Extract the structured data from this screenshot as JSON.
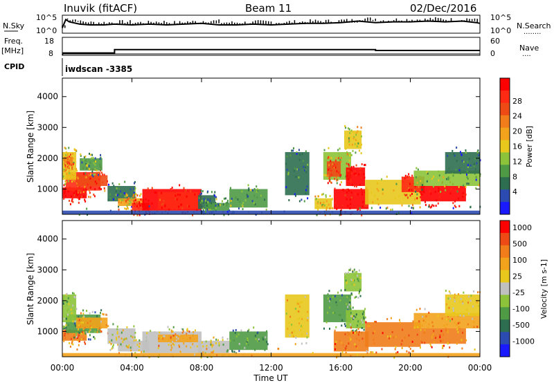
{
  "header": {
    "station": "Inuvik (fitACF)",
    "beam": "Beam 11",
    "date": "02/Dec/2016"
  },
  "top_panels": {
    "nsky_label": "N.Sky",
    "nsearch_label": "N.Search",
    "nsearch_dots": "........",
    "left_ticks": [
      "10^5",
      "10^0"
    ],
    "right_ticks": [
      "10^5",
      "10^0"
    ],
    "freq_label_1": "Freq.",
    "freq_label_2": "[MHz]",
    "freq_ticks": [
      "18",
      "8"
    ],
    "nave_label": "Nave",
    "nave_dots": "....",
    "nave_ticks": [
      "60",
      "0"
    ],
    "cpid_label": "CPID",
    "cpid_value": "iwdscan -3385"
  },
  "chart_data": [
    {
      "type": "line",
      "name": "N.Sky / N.Search",
      "yscale": "log",
      "x_hours": [
        0,
        0.2,
        0.4,
        1,
        1.6,
        2.4,
        3,
        4,
        5,
        6,
        7,
        8,
        9,
        10,
        11,
        12,
        13,
        14,
        15,
        16,
        17,
        18,
        19,
        20,
        21,
        22,
        23,
        23.8,
        24
      ],
      "nsky_level": [
        0.3,
        0.85,
        0.7,
        0.55,
        0.5,
        0.5,
        0.55,
        0.5,
        0.55,
        0.5,
        0.55,
        0.6,
        0.5,
        0.5,
        0.55,
        0.5,
        0.55,
        0.6,
        0.6,
        0.65,
        0.75,
        0.65,
        0.7,
        0.7,
        0.75,
        0.7,
        0.75,
        0.65,
        0.6
      ]
    },
    {
      "type": "line",
      "name": "Freq / Nave",
      "x_hours": [
        0,
        0.05,
        3,
        3,
        18,
        18,
        24
      ],
      "freq_mhz": [
        8,
        9,
        9,
        11,
        11,
        10.5,
        10.5
      ],
      "ylim": [
        8,
        18
      ]
    },
    {
      "type": "heatmap",
      "name": "power",
      "ylabel": "Slant Range [km]",
      "xlim": [
        0,
        24
      ],
      "ylim": [
        180,
        4600
      ],
      "yticks": [
        "1000",
        "2000",
        "3000",
        "4000"
      ],
      "colorbar_label": "Power [dB]",
      "colorbar_ticks": [
        "4",
        "8",
        "12",
        "16",
        "20",
        "24",
        "28"
      ],
      "colorbar_colors": [
        "#1a1aff",
        "#2c4bb0",
        "#2d6e50",
        "#4f9a45",
        "#8cc33a",
        "#e8c81c",
        "#f2a21b",
        "#f07c1a",
        "#ee4a16",
        "#ff2a14",
        "#ff0000"
      ],
      "regions": [
        {
          "x0": 0.0,
          "x1": 1.4,
          "y0": 700,
          "y1": 1050,
          "c": 10
        },
        {
          "x0": 0.2,
          "x1": 2.2,
          "y0": 950,
          "y1": 1550,
          "c": 9
        },
        {
          "x0": 0.8,
          "x1": 2.6,
          "y0": 1100,
          "y1": 1450,
          "c": 8
        },
        {
          "x0": 0.0,
          "x1": 0.8,
          "y0": 1300,
          "y1": 2200,
          "c": 5
        },
        {
          "x0": 0.1,
          "x1": 0.6,
          "y0": 1800,
          "y1": 2050,
          "c": 7
        },
        {
          "x0": 1.0,
          "x1": 2.3,
          "y0": 1600,
          "y1": 2000,
          "c": 3
        },
        {
          "x0": 2.6,
          "x1": 4.2,
          "y0": 600,
          "y1": 1100,
          "c": 2
        },
        {
          "x0": 3.2,
          "x1": 4.6,
          "y0": 450,
          "y1": 700,
          "c": 6
        },
        {
          "x0": 4.0,
          "x1": 5.0,
          "y0": 300,
          "y1": 550,
          "c": 9
        },
        {
          "x0": 4.6,
          "x1": 8.0,
          "y0": 300,
          "y1": 1000,
          "c": 10
        },
        {
          "x0": 5.5,
          "x1": 7.8,
          "y0": 350,
          "y1": 900,
          "c": 9
        },
        {
          "x0": 7.8,
          "x1": 8.8,
          "y0": 350,
          "y1": 800,
          "c": 2
        },
        {
          "x0": 8.2,
          "x1": 9.6,
          "y0": 300,
          "y1": 550,
          "c": 3
        },
        {
          "x0": 9.6,
          "x1": 11.8,
          "y0": 400,
          "y1": 1000,
          "c": 3
        },
        {
          "x0": 12.8,
          "x1": 14.2,
          "y0": 800,
          "y1": 2200,
          "c": 2
        },
        {
          "x0": 14.5,
          "x1": 15.5,
          "y0": 350,
          "y1": 700,
          "c": 5
        },
        {
          "x0": 15.0,
          "x1": 16.6,
          "y0": 1300,
          "y1": 2200,
          "c": 4
        },
        {
          "x0": 15.2,
          "x1": 16.0,
          "y0": 1400,
          "y1": 1900,
          "c": 8
        },
        {
          "x0": 16.3,
          "x1": 17.4,
          "y0": 1100,
          "y1": 1700,
          "c": 10
        },
        {
          "x0": 15.6,
          "x1": 17.6,
          "y0": 350,
          "y1": 1000,
          "c": 10
        },
        {
          "x0": 16.2,
          "x1": 17.2,
          "y0": 2300,
          "y1": 2900,
          "c": 5
        },
        {
          "x0": 17.4,
          "x1": 20.6,
          "y0": 500,
          "y1": 1300,
          "c": 5
        },
        {
          "x0": 19.5,
          "x1": 20.8,
          "y0": 900,
          "y1": 1400,
          "c": 9
        },
        {
          "x0": 20.6,
          "x1": 23.2,
          "y0": 600,
          "y1": 1100,
          "c": 10
        },
        {
          "x0": 20.2,
          "x1": 24.0,
          "y0": 1100,
          "y1": 1600,
          "c": 4
        },
        {
          "x0": 22.0,
          "x1": 24.0,
          "y0": 1500,
          "y1": 2200,
          "c": 2
        },
        {
          "x0": 0.0,
          "x1": 24.0,
          "y0": 180,
          "y1": 300,
          "c": 1
        }
      ]
    },
    {
      "type": "heatmap",
      "name": "velocity",
      "ylabel": "Slant Range [km]",
      "xlabel": "Time UT",
      "xlim": [
        0,
        24
      ],
      "ylim": [
        180,
        4600
      ],
      "yticks": [
        "1000",
        "2000",
        "3000",
        "4000"
      ],
      "xticks": [
        "00:00",
        "04:00",
        "08:00",
        "12:00",
        "16:00",
        "20:00",
        "00:00"
      ],
      "colorbar_label": "Velocity [m s-1]",
      "colorbar_ticks": [
        "1000",
        "500",
        "100",
        "25",
        "-25",
        "-100",
        "-500",
        "-1000"
      ],
      "colorbar_colors": [
        "#1a1aff",
        "#2c4bb0",
        "#2d6e50",
        "#4f9a45",
        "#8cc33a",
        "#c0c0c0",
        "#e8c81c",
        "#f2a21b",
        "#f07c1a",
        "#ee4a16",
        "#ff0000"
      ],
      "regions": [
        {
          "x0": 0.0,
          "x1": 1.4,
          "y0": 700,
          "y1": 1050,
          "c": 8
        },
        {
          "x0": 0.2,
          "x1": 2.2,
          "y0": 950,
          "y1": 1550,
          "c": 3
        },
        {
          "x0": 0.0,
          "x1": 0.8,
          "y0": 1300,
          "y1": 2200,
          "c": 4
        },
        {
          "x0": 0.8,
          "x1": 2.6,
          "y0": 1100,
          "y1": 1450,
          "c": 7
        },
        {
          "x0": 2.6,
          "x1": 4.2,
          "y0": 600,
          "y1": 1100,
          "c": 5
        },
        {
          "x0": 3.2,
          "x1": 5.0,
          "y0": 350,
          "y1": 700,
          "c": 5
        },
        {
          "x0": 4.6,
          "x1": 8.0,
          "y0": 300,
          "y1": 1000,
          "c": 5
        },
        {
          "x0": 5.5,
          "x1": 7.8,
          "y0": 650,
          "y1": 900,
          "c": 7
        },
        {
          "x0": 7.8,
          "x1": 9.6,
          "y0": 300,
          "y1": 700,
          "c": 5
        },
        {
          "x0": 9.6,
          "x1": 11.8,
          "y0": 400,
          "y1": 1000,
          "c": 3
        },
        {
          "x0": 12.8,
          "x1": 14.2,
          "y0": 800,
          "y1": 2200,
          "c": 6
        },
        {
          "x0": 15.0,
          "x1": 16.6,
          "y0": 1300,
          "y1": 2200,
          "c": 3
        },
        {
          "x0": 16.3,
          "x1": 17.4,
          "y0": 1100,
          "y1": 1700,
          "c": 4
        },
        {
          "x0": 15.6,
          "x1": 17.6,
          "y0": 350,
          "y1": 1000,
          "c": 8
        },
        {
          "x0": 16.2,
          "x1": 17.2,
          "y0": 2300,
          "y1": 2900,
          "c": 4
        },
        {
          "x0": 17.4,
          "x1": 20.6,
          "y0": 500,
          "y1": 1300,
          "c": 8
        },
        {
          "x0": 20.6,
          "x1": 23.2,
          "y0": 600,
          "y1": 1100,
          "c": 8
        },
        {
          "x0": 20.2,
          "x1": 24.0,
          "y0": 1100,
          "y1": 1600,
          "c": 7
        },
        {
          "x0": 22.0,
          "x1": 24.0,
          "y0": 1500,
          "y1": 2200,
          "c": 6
        },
        {
          "x0": 0.0,
          "x1": 24.0,
          "y0": 180,
          "y1": 300,
          "c": 7
        }
      ]
    }
  ]
}
